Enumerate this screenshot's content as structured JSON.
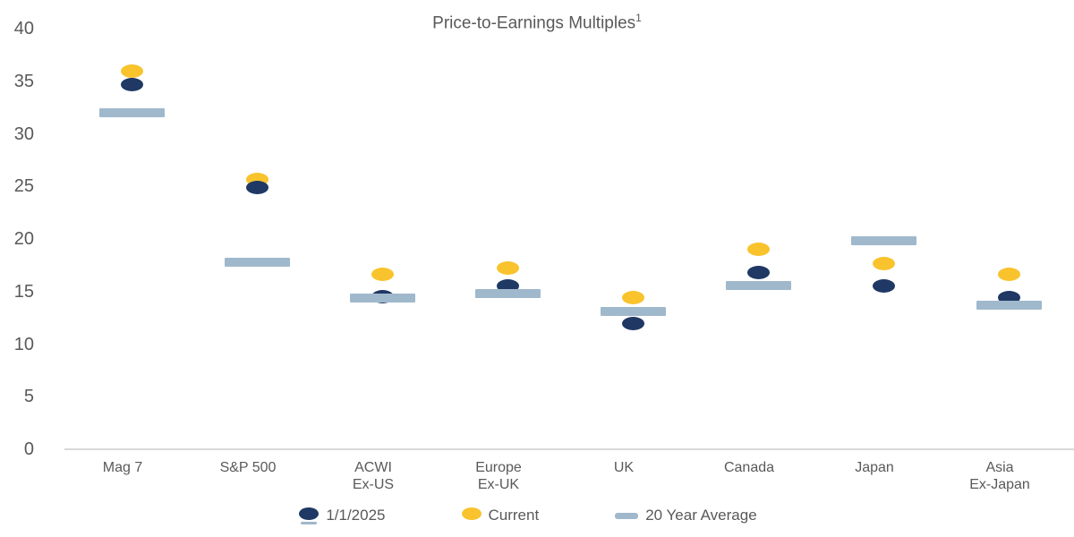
{
  "chart_data": {
    "type": "scatter",
    "title": "Price-to-Earnings Multiples",
    "title_superscript": "1",
    "categories": [
      "Mag 7",
      "S&P 500",
      "ACWI\nEx-US",
      "Europe\nEx-UK",
      "UK",
      "Canada",
      "Japan",
      "Asia\nEx-Japan"
    ],
    "series": [
      {
        "name": "1/1/2025",
        "marker": "dot",
        "color": "#1f3864",
        "values": [
          34.7,
          24.9,
          14.5,
          15.5,
          12.0,
          16.8,
          15.5,
          14.4
        ]
      },
      {
        "name": "Current",
        "marker": "dot",
        "color": "#f9c32d",
        "values": [
          36.0,
          25.7,
          16.6,
          17.2,
          14.4,
          19.0,
          17.7,
          16.6
        ]
      },
      {
        "name": "20 Year Average",
        "marker": "dash",
        "color": "#a0b8cb",
        "values": [
          32.0,
          17.8,
          14.4,
          14.8,
          13.1,
          15.6,
          19.8,
          13.7
        ]
      }
    ],
    "ylim": [
      0,
      40
    ],
    "yticks": [
      0,
      5,
      10,
      15,
      20,
      25,
      30,
      35,
      40
    ],
    "legend_position": "bottom",
    "grid": false
  },
  "colors": {
    "navy": "#1f3864",
    "yellow": "#f9c32d",
    "light_blue": "#a0b8cb",
    "text_gray": "#595959",
    "axis_gray": "#d9d9d9"
  }
}
